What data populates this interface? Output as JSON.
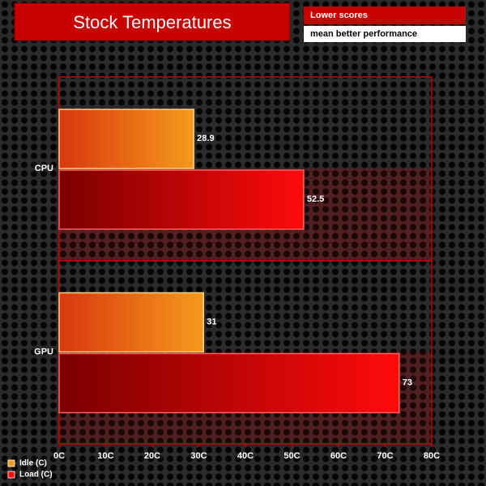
{
  "chart_data": {
    "type": "hbar",
    "title": "Stock Temperatures",
    "annotations": [
      "Lower scores",
      "mean better performance"
    ],
    "categories": [
      "CPU",
      "GPU"
    ],
    "series": [
      {
        "name": "Idle (C)",
        "color": "#f59a1c",
        "values": [
          28.9,
          31
        ]
      },
      {
        "name": "Load (C)",
        "color": "#ff0a0a",
        "values": [
          52.5,
          73
        ]
      }
    ],
    "xlim": [
      0,
      80
    ],
    "xticks": [
      {
        "value": 0,
        "label": "0C"
      },
      {
        "value": 10,
        "label": "10C"
      },
      {
        "value": 20,
        "label": "20C"
      },
      {
        "value": 30,
        "label": "30C"
      },
      {
        "value": 40,
        "label": "40C"
      },
      {
        "value": 50,
        "label": "50C"
      },
      {
        "value": 60,
        "label": "60C"
      },
      {
        "value": 70,
        "label": "70C"
      },
      {
        "value": 80,
        "label": "80C"
      }
    ],
    "legend": "bottom-left",
    "grid": false
  }
}
